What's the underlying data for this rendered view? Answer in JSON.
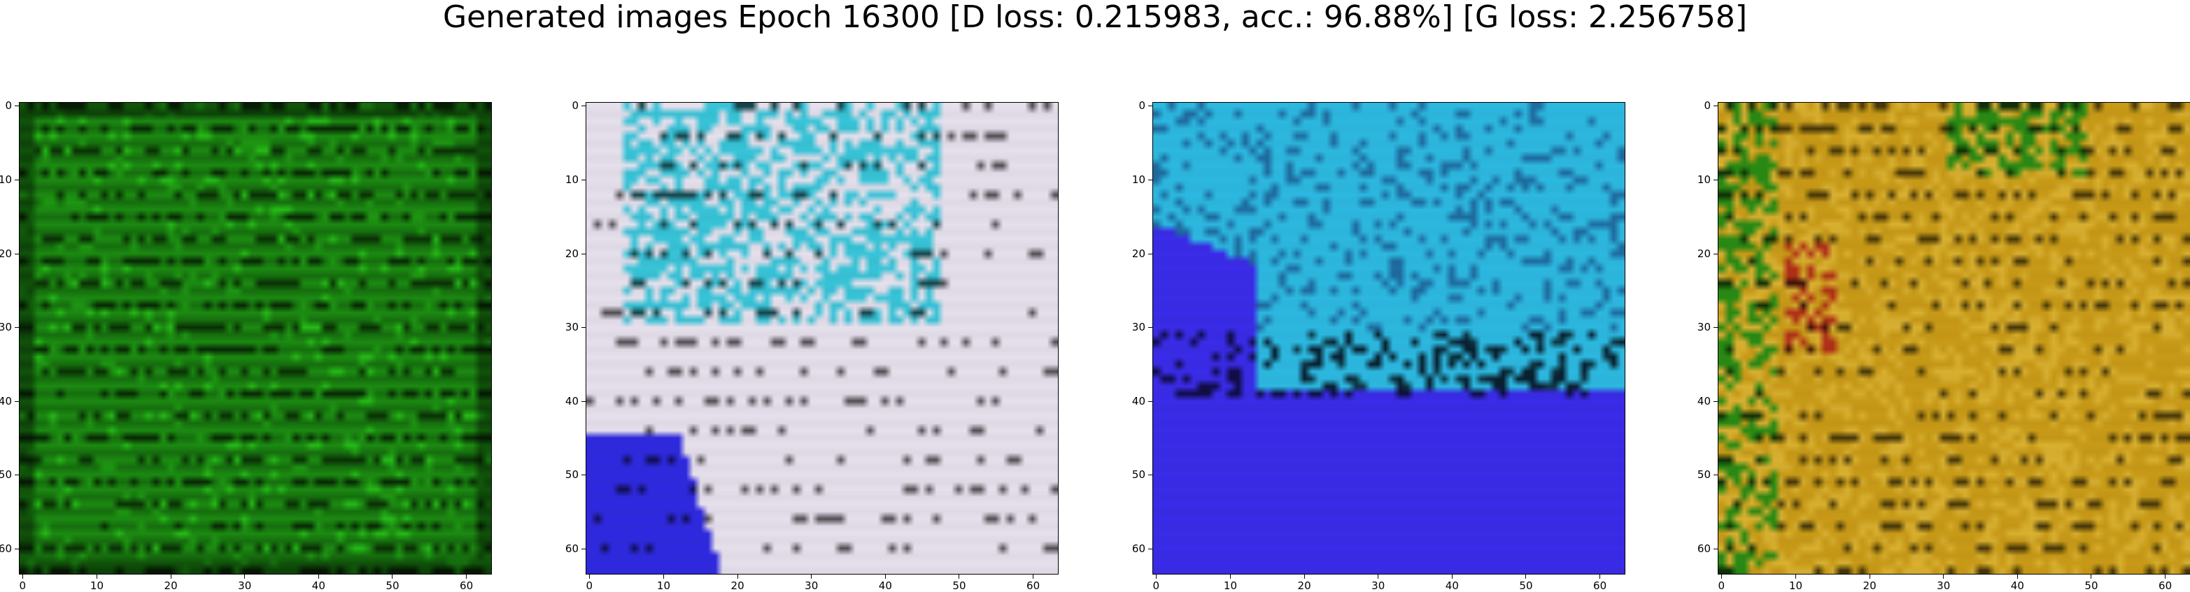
{
  "title": "Generated images Epoch 16300 [D loss: 0.215983, acc.: 96.88%] [G loss: 2.256758]",
  "axis_ticks": {
    "x": [
      "0",
      "10",
      "20",
      "30",
      "40",
      "50",
      "60"
    ],
    "y": [
      "0",
      "10",
      "20",
      "30",
      "40",
      "50",
      "60"
    ],
    "tick_values": [
      0,
      10,
      20,
      30,
      40,
      50,
      60
    ],
    "image_size": 64
  },
  "panels": [
    {
      "name": "generated-image-1",
      "dominant_colors": [
        "#1c8a12",
        "#2fb61f",
        "#0c4a06",
        "#4fd43a"
      ],
      "description_style": "green-striped"
    },
    {
      "name": "generated-image-2",
      "dominant_colors": [
        "#e6e0ec",
        "#38c4d8",
        "#2f2ae0",
        "#f2f2f2"
      ],
      "description_style": "white-cyan-blue"
    },
    {
      "name": "generated-image-3",
      "dominant_colors": [
        "#2db8e0",
        "#3a2ce8",
        "#1f6ca0",
        "#46d0e8"
      ],
      "description_style": "cyan-blue"
    },
    {
      "name": "generated-image-4",
      "dominant_colors": [
        "#c89a18",
        "#d9b030",
        "#2a8a14",
        "#b03018"
      ],
      "description_style": "golden-orange"
    }
  ]
}
